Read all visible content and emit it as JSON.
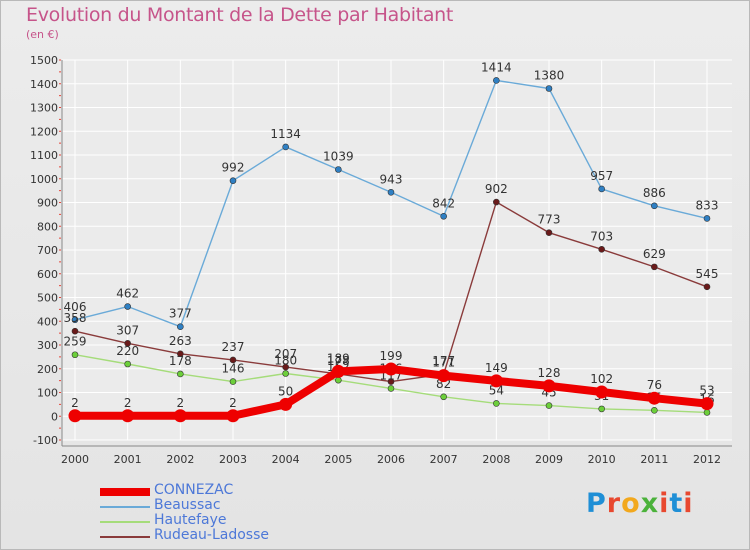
{
  "header": {
    "title": "Evolution du Montant de la Dette par Habitant",
    "unit": "(en €)"
  },
  "logo": {
    "text": "Proxiti",
    "letters": [
      "P",
      "r",
      "o",
      "x",
      "i",
      "t",
      "i"
    ],
    "colors": [
      "#1f8fd6",
      "#e8482f",
      "#f2a81d",
      "#4bb23b",
      "#e8482f",
      "#1f8fd6",
      "#e8482f"
    ]
  },
  "chart_data": {
    "type": "line",
    "categories": [
      "2000",
      "2001",
      "2002",
      "2003",
      "2004",
      "2005",
      "2006",
      "2007",
      "2008",
      "2009",
      "2010",
      "2011",
      "2012"
    ],
    "ylim": [
      -100,
      1500
    ],
    "yticks": [
      "-100",
      "0",
      "100",
      "200",
      "300",
      "400",
      "500",
      "600",
      "700",
      "800",
      "900",
      "1000",
      "1100",
      "1200",
      "1300",
      "1400",
      "1500"
    ],
    "grid": true,
    "legend_position": "bottom-left",
    "series": [
      {
        "name": "Beaussac",
        "color": "#6aaad8",
        "dot": "#2f80c4",
        "values": [
          406,
          462,
          377,
          992,
          1134,
          1039,
          943,
          842,
          1414,
          1380,
          957,
          886,
          833
        ],
        "labels": [
          "406",
          "462",
          "377",
          "992",
          "1134",
          "1039",
          "943",
          "842",
          "1414",
          "1380",
          "957",
          "886",
          "833"
        ]
      },
      {
        "name": "Rudeau-Ladosse",
        "color": "#8a3b3b",
        "dot": "#6a1a1a",
        "values": [
          358,
          307,
          263,
          237,
          207,
          178,
          146,
          177,
          902,
          773,
          703,
          629,
          545
        ],
        "labels": [
          "358",
          "307",
          "263",
          "237",
          "207",
          "178",
          "146",
          "177",
          "902",
          "773",
          "703",
          "629",
          "545"
        ]
      },
      {
        "name": "Hautefaye",
        "color": "#a5dc7a",
        "dot": "#6ccf3a",
        "values": [
          259,
          220,
          178,
          146,
          180,
          152,
          117,
          82,
          54,
          45,
          31,
          25,
          16
        ],
        "labels": [
          "259",
          "220",
          "178",
          "146",
          "180",
          "152",
          "117",
          "82",
          "54",
          "45",
          "31",
          "25",
          "16"
        ]
      },
      {
        "name": "CONNEZAC",
        "color": "#ee0000",
        "dot": "#ee0000",
        "values": [
          2,
          2,
          2,
          2,
          50,
          189,
          199,
          171,
          149,
          128,
          102,
          76,
          53
        ],
        "labels": [
          "2",
          "2",
          "2",
          "2",
          "50",
          "189",
          "199",
          "171",
          "149",
          "128",
          "102",
          "76",
          "53"
        ]
      }
    ],
    "legend": [
      {
        "name": "CONNEZAC",
        "color": "#ee0000"
      },
      {
        "name": "Beaussac",
        "color": "#6aaad8"
      },
      {
        "name": "Hautefaye",
        "color": "#a5dc7a"
      },
      {
        "name": "Rudeau-Ladosse",
        "color": "#8a3b3b"
      }
    ]
  }
}
